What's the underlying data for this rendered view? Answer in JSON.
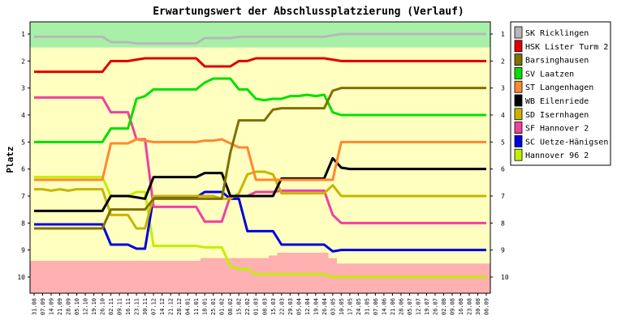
{
  "chart_data": {
    "type": "line",
    "title": "Erwartungswert der Abschlussplatzierung (Verlauf)",
    "ylabel": "Platz",
    "xlabel": "",
    "ylim": [
      0.55,
      10.6
    ],
    "y_inverted": true,
    "y_ticks": [
      1,
      2,
      3,
      4,
      5,
      6,
      7,
      8,
      9,
      10
    ],
    "grid": false,
    "legend": "right",
    "categories": [
      "31.08",
      "07.09",
      "14.09",
      "21.09",
      "28.09",
      "05.10",
      "12.10",
      "19.10",
      "26.10",
      "02.11",
      "09.11",
      "16.11",
      "23.11",
      "30.11",
      "07.12",
      "14.12",
      "21.12",
      "28.12",
      "04.01",
      "11.01",
      "18.01",
      "25.01",
      "01.02",
      "08.02",
      "15.02",
      "22.02",
      "01.03",
      "08.03",
      "15.03",
      "22.03",
      "29.03",
      "05.04",
      "12.04",
      "19.04",
      "26.04",
      "03.05",
      "10.05",
      "17.05",
      "24.05",
      "31.05",
      "07.06",
      "14.06",
      "21.06",
      "28.06",
      "05.07",
      "12.07",
      "19.07",
      "26.07",
      "02.08",
      "09.08",
      "16.08",
      "23.08",
      "30.08",
      "06.09"
    ],
    "bands": {
      "top_color": "#a8f0a8",
      "top_max": 1.5,
      "middle_color": "#ffffc0",
      "bottom_color": "#ffb0b0",
      "bottom_min": [
        9.4,
        9.4,
        9.4,
        9.4,
        9.4,
        9.4,
        9.4,
        9.4,
        9.4,
        9.4,
        9.4,
        9.4,
        9.4,
        9.4,
        9.4,
        9.4,
        9.4,
        9.4,
        9.4,
        9.4,
        9.3,
        9.3,
        9.3,
        9.3,
        9.3,
        9.3,
        9.3,
        9.3,
        9.2,
        9.1,
        9.1,
        9.1,
        9.1,
        9.1,
        9.1,
        9.3,
        9.5,
        9.5,
        9.5,
        9.5,
        9.5,
        9.5,
        9.5,
        9.5,
        9.5,
        9.5,
        9.5,
        9.5,
        9.5,
        9.5,
        9.5,
        9.5,
        9.5,
        9.5
      ]
    },
    "series": [
      {
        "name": "SK Ricklingen",
        "color": "#b8b8b8",
        "values": [
          1.1,
          1.1,
          1.1,
          1.1,
          1.1,
          1.1,
          1.1,
          1.1,
          1.1,
          1.3,
          1.3,
          1.3,
          1.35,
          1.35,
          1.35,
          1.35,
          1.35,
          1.35,
          1.35,
          1.35,
          1.15,
          1.15,
          1.15,
          1.15,
          1.1,
          1.1,
          1.1,
          1.1,
          1.1,
          1.1,
          1.1,
          1.1,
          1.1,
          1.1,
          1.1,
          1.05,
          1.0,
          1.0,
          1.0,
          1.0,
          1.0,
          1.0,
          1.0,
          1.0,
          1.0,
          1.0,
          1.0,
          1.0,
          1.0,
          1.0,
          1.0,
          1.0,
          1.0,
          1.0
        ]
      },
      {
        "name": "HSK Lister Turm 2",
        "color": "#e00000",
        "values": [
          2.4,
          2.4,
          2.4,
          2.4,
          2.4,
          2.4,
          2.4,
          2.4,
          2.4,
          2.0,
          2.0,
          2.0,
          1.95,
          1.9,
          1.9,
          1.9,
          1.9,
          1.9,
          1.9,
          1.9,
          2.2,
          2.2,
          2.2,
          2.2,
          2.0,
          2.0,
          1.9,
          1.9,
          1.9,
          1.9,
          1.9,
          1.9,
          1.9,
          1.9,
          1.9,
          1.95,
          2.0,
          2.0,
          2.0,
          2.0,
          2.0,
          2.0,
          2.0,
          2.0,
          2.0,
          2.0,
          2.0,
          2.0,
          2.0,
          2.0,
          2.0,
          2.0,
          2.0,
          2.0
        ]
      },
      {
        "name": "Barsinghausen",
        "color": "#807000",
        "values": [
          8.2,
          8.2,
          8.2,
          8.2,
          8.2,
          8.2,
          8.2,
          8.2,
          8.2,
          7.5,
          7.5,
          7.5,
          7.5,
          7.5,
          7.1,
          7.1,
          7.1,
          7.1,
          7.1,
          7.1,
          7.1,
          7.1,
          7.1,
          5.4,
          4.2,
          4.2,
          4.2,
          4.2,
          3.8,
          3.75,
          3.75,
          3.75,
          3.75,
          3.75,
          3.75,
          3.1,
          3.0,
          3.0,
          3.0,
          3.0,
          3.0,
          3.0,
          3.0,
          3.0,
          3.0,
          3.0,
          3.0,
          3.0,
          3.0,
          3.0,
          3.0,
          3.0,
          3.0,
          3.0
        ]
      },
      {
        "name": "SV Laatzen",
        "color": "#00e000",
        "values": [
          5.0,
          5.0,
          5.0,
          5.0,
          5.0,
          5.0,
          5.0,
          5.0,
          5.0,
          4.5,
          4.5,
          4.5,
          3.4,
          3.3,
          3.05,
          3.05,
          3.05,
          3.05,
          3.05,
          3.05,
          2.8,
          2.65,
          2.65,
          2.65,
          3.05,
          3.05,
          3.4,
          3.45,
          3.4,
          3.4,
          3.3,
          3.3,
          3.25,
          3.3,
          3.25,
          3.9,
          4.0,
          4.0,
          4.0,
          4.0,
          4.0,
          4.0,
          4.0,
          4.0,
          4.0,
          4.0,
          4.0,
          4.0,
          4.0,
          4.0,
          4.0,
          4.0,
          4.0,
          4.0
        ]
      },
      {
        "name": "ST Langenhagen",
        "color": "#ff8830",
        "values": [
          6.4,
          6.4,
          6.4,
          6.4,
          6.4,
          6.4,
          6.4,
          6.4,
          6.4,
          5.05,
          5.05,
          5.05,
          4.9,
          4.95,
          5.0,
          5.0,
          5.0,
          5.0,
          5.0,
          5.0,
          4.95,
          4.95,
          4.9,
          5.05,
          5.2,
          5.2,
          6.4,
          6.4,
          6.4,
          6.4,
          6.4,
          6.4,
          6.4,
          6.4,
          6.4,
          6.4,
          5.0,
          5.0,
          5.0,
          5.0,
          5.0,
          5.0,
          5.0,
          5.0,
          5.0,
          5.0,
          5.0,
          5.0,
          5.0,
          5.0,
          5.0,
          5.0,
          5.0,
          5.0
        ]
      },
      {
        "name": "WB Eilenriede",
        "color": "#000000",
        "values": [
          7.55,
          7.55,
          7.55,
          7.55,
          7.55,
          7.55,
          7.55,
          7.55,
          7.55,
          7.0,
          7.0,
          7.0,
          7.05,
          7.1,
          6.3,
          6.3,
          6.3,
          6.3,
          6.3,
          6.3,
          6.15,
          6.15,
          6.15,
          7.0,
          7.0,
          7.0,
          7.0,
          7.0,
          7.0,
          6.35,
          6.35,
          6.35,
          6.35,
          6.35,
          6.35,
          5.6,
          5.95,
          6.0,
          6.0,
          6.0,
          6.0,
          6.0,
          6.0,
          6.0,
          6.0,
          6.0,
          6.0,
          6.0,
          6.0,
          6.0,
          6.0,
          6.0,
          6.0,
          6.0
        ]
      },
      {
        "name": "SD Isernhagen",
        "color": "#c8b400",
        "values": [
          6.75,
          6.75,
          6.8,
          6.75,
          6.8,
          6.75,
          6.75,
          6.75,
          6.75,
          7.7,
          7.7,
          7.7,
          8.2,
          8.2,
          7.0,
          7.0,
          7.0,
          7.0,
          7.0,
          7.0,
          7.0,
          7.0,
          7.1,
          7.1,
          6.9,
          6.2,
          6.1,
          6.1,
          6.2,
          6.9,
          6.9,
          6.9,
          6.9,
          6.9,
          6.9,
          6.6,
          7.0,
          7.0,
          7.0,
          7.0,
          7.0,
          7.0,
          7.0,
          7.0,
          7.0,
          7.0,
          7.0,
          7.0,
          7.0,
          7.0,
          7.0,
          7.0,
          7.0,
          7.0
        ]
      },
      {
        "name": "SF Hannover 2",
        "color": "#f040a0",
        "values": [
          3.35,
          3.35,
          3.35,
          3.35,
          3.35,
          3.35,
          3.35,
          3.35,
          3.35,
          3.9,
          3.9,
          3.9,
          4.9,
          4.9,
          7.4,
          7.4,
          7.4,
          7.4,
          7.4,
          7.4,
          7.95,
          7.95,
          7.95,
          7.0,
          7.0,
          7.0,
          6.85,
          6.85,
          6.85,
          6.8,
          6.8,
          6.8,
          6.8,
          6.8,
          6.8,
          7.7,
          8.0,
          8.0,
          8.0,
          8.0,
          8.0,
          8.0,
          8.0,
          8.0,
          8.0,
          8.0,
          8.0,
          8.0,
          8.0,
          8.0,
          8.0,
          8.0,
          8.0,
          8.0
        ]
      },
      {
        "name": "SC Uetze-Hänigsen",
        "color": "#0000e0",
        "values": [
          8.05,
          8.05,
          8.05,
          8.05,
          8.05,
          8.05,
          8.05,
          8.05,
          8.05,
          8.8,
          8.8,
          8.8,
          8.95,
          8.95,
          7.05,
          7.05,
          7.05,
          7.05,
          7.05,
          7.05,
          6.85,
          6.85,
          6.85,
          7.1,
          7.1,
          8.3,
          8.3,
          8.3,
          8.3,
          8.8,
          8.8,
          8.8,
          8.8,
          8.8,
          8.8,
          9.05,
          9.0,
          9.0,
          9.0,
          9.0,
          9.0,
          9.0,
          9.0,
          9.0,
          9.0,
          9.0,
          9.0,
          9.0,
          9.0,
          9.0,
          9.0,
          9.0,
          9.0,
          9.0
        ]
      },
      {
        "name": "Hannover 96 2",
        "color": "#c0f000",
        "values": [
          6.3,
          6.3,
          6.3,
          6.3,
          6.3,
          6.3,
          6.3,
          6.3,
          6.3,
          7.0,
          7.0,
          7.0,
          6.85,
          6.85,
          8.85,
          8.85,
          8.85,
          8.85,
          8.85,
          8.85,
          8.9,
          8.9,
          8.9,
          9.6,
          9.7,
          9.7,
          9.9,
          9.9,
          9.9,
          9.9,
          9.9,
          9.9,
          9.9,
          9.9,
          9.9,
          10.0,
          10.0,
          10.0,
          10.0,
          10.0,
          10.0,
          10.0,
          10.0,
          10.0,
          10.0,
          10.0,
          10.0,
          10.0,
          10.0,
          10.0,
          10.0,
          10.0,
          10.0,
          10.0
        ]
      }
    ]
  }
}
